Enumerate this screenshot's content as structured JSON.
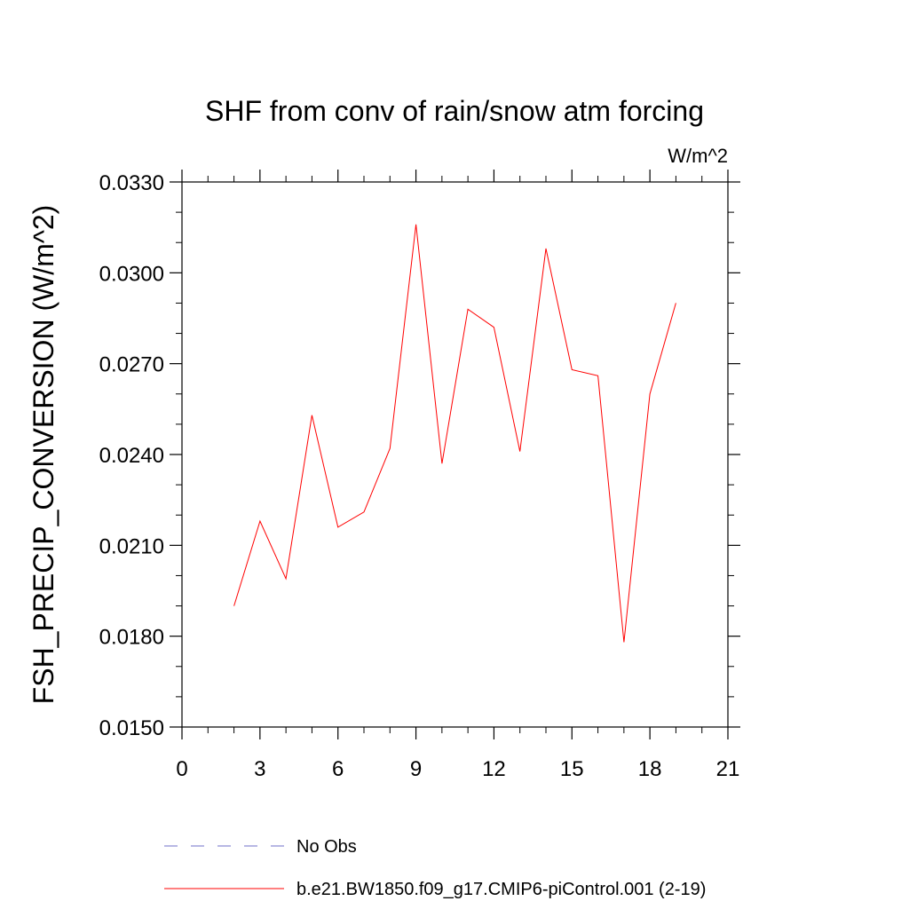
{
  "chart_data": {
    "type": "line",
    "title": "SHF from conv of rain/snow atm forcing",
    "units_label": "W/m^2",
    "xlabel": "",
    "ylabel": "FSH_PRECIP_CONVERSION  (W/m^2)",
    "xlim": [
      0,
      21
    ],
    "ylim": [
      0.015,
      0.033
    ],
    "x_ticks": [
      "0",
      "3",
      "6",
      "9",
      "12",
      "15",
      "18",
      "21"
    ],
    "y_ticks": [
      "0.0150",
      "0.0180",
      "0.0210",
      "0.0240",
      "0.0270",
      "0.0300",
      "0.0330"
    ],
    "grid": false,
    "series": [
      {
        "name": "b.e21.BW1850.f09_g17.CMIP6-piControl.001 (2-19)",
        "color": "#ff0000",
        "x": [
          2,
          3,
          4,
          5,
          6,
          7,
          8,
          9,
          10,
          11,
          12,
          13,
          14,
          15,
          16,
          17,
          18,
          19
        ],
        "y": [
          0.019,
          0.0218,
          0.0199,
          0.0253,
          0.0216,
          0.0221,
          0.0242,
          0.0316,
          0.0237,
          0.0288,
          0.0282,
          0.0241,
          0.0308,
          0.0268,
          0.0266,
          0.0178,
          0.026,
          0.029
        ]
      }
    ],
    "legend": [
      {
        "label": "No Obs",
        "style": "dashed",
        "color": "#7070c8"
      },
      {
        "label": "b.e21.BW1850.f09_g17.CMIP6-piControl.001 (2-19)",
        "style": "solid",
        "color": "#ff0000"
      }
    ]
  }
}
